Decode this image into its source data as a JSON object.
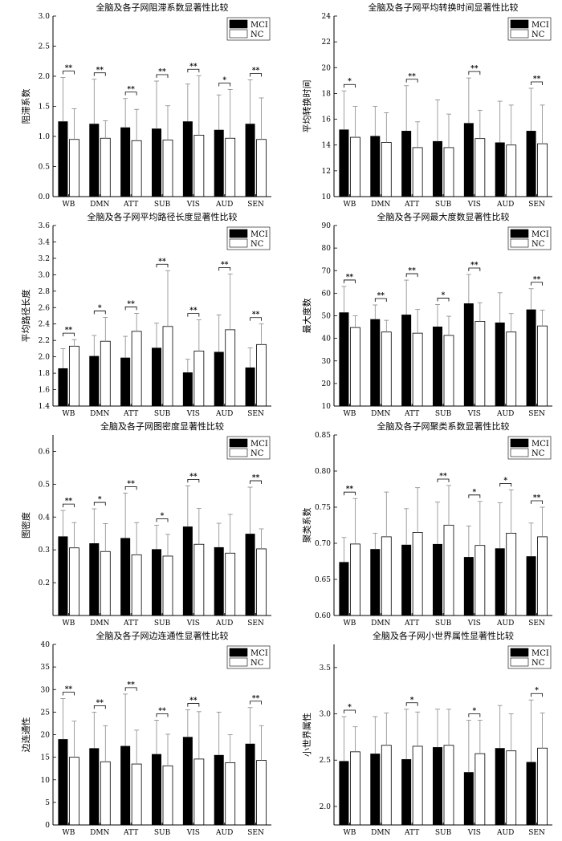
{
  "legend": {
    "mci": "MCI",
    "nc": "NC"
  },
  "colors": {
    "mci": "#000000",
    "nc": "#ffffff",
    "stroke": "#000000",
    "error": "#888888"
  },
  "chart_data": [
    {
      "type": "bar",
      "title": "全脑及各子网阻滞系数显著性比较",
      "ylabel": "阻滞系数",
      "xlabel": "",
      "ylim": [
        0,
        3.0
      ],
      "yticks": [
        "0.0",
        "0.5",
        "1.0",
        "1.5",
        "2.0",
        "2.5",
        "3.0"
      ],
      "categories": [
        "WB",
        "DMN",
        "ATT",
        "SUB",
        "VIS",
        "AUD",
        "SEN"
      ],
      "legend_position": "top-right",
      "series": [
        {
          "name": "MCI",
          "values": [
            1.25,
            1.21,
            1.15,
            1.13,
            1.25,
            1.11,
            1.21
          ],
          "errors": [
            0.73,
            0.74,
            0.48,
            0.79,
            0.62,
            0.58,
            0.73
          ]
        },
        {
          "name": "NC",
          "values": [
            0.95,
            0.97,
            0.93,
            0.94,
            1.02,
            0.97,
            0.95
          ],
          "errors": [
            0.51,
            0.29,
            0.52,
            0.57,
            0.99,
            0.81,
            0.69
          ]
        }
      ],
      "significance": [
        "**",
        "**",
        "**",
        "**",
        "**",
        "*",
        "**"
      ]
    },
    {
      "type": "bar",
      "title": "全脑及各子网平均转换时间显著性比较",
      "ylabel": "平均转换时间",
      "xlabel": "",
      "ylim": [
        10,
        24
      ],
      "yticks": [
        "10",
        "12",
        "14",
        "16",
        "18",
        "20",
        "22",
        "24"
      ],
      "categories": [
        "WB",
        "DMN",
        "ATT",
        "SUB",
        "VIS",
        "AUD",
        "SEN"
      ],
      "legend_position": "top-right",
      "series": [
        {
          "name": "MCI",
          "values": [
            15.2,
            14.7,
            15.1,
            14.3,
            15.7,
            14.2,
            15.1
          ],
          "errors": [
            3.0,
            2.3,
            3.5,
            3.2,
            3.5,
            3.2,
            3.3
          ]
        },
        {
          "name": "NC",
          "values": [
            14.6,
            14.2,
            13.8,
            13.8,
            14.5,
            14.0,
            14.1
          ],
          "errors": [
            2.4,
            2.3,
            2.0,
            2.6,
            2.2,
            3.1,
            3.0
          ]
        }
      ],
      "significance": [
        "*",
        "",
        "**",
        "",
        "**",
        "",
        "**"
      ]
    },
    {
      "type": "bar",
      "title": "全脑及各子网平均路径长度显著性比较",
      "ylabel": "平均路径长度",
      "xlabel": "",
      "ylim": [
        1.4,
        3.6
      ],
      "yticks": [
        "1.4",
        "1.6",
        "1.8",
        "2.0",
        "2.2",
        "2.4",
        "2.6",
        "2.8",
        "3.0",
        "3.2",
        "3.4",
        "3.6"
      ],
      "categories": [
        "WB",
        "DMN",
        "ATT",
        "SUB",
        "VIS",
        "AUD",
        "SEN"
      ],
      "legend_position": "top-right",
      "series": [
        {
          "name": "MCI",
          "values": [
            1.86,
            2.01,
            1.99,
            2.11,
            1.81,
            2.06,
            1.87
          ],
          "errors": [
            0.24,
            0.25,
            0.26,
            0.3,
            0.16,
            0.45,
            0.24
          ]
        },
        {
          "name": "NC",
          "values": [
            2.13,
            2.19,
            2.31,
            2.37,
            2.07,
            2.33,
            2.15
          ],
          "errors": [
            0.08,
            0.29,
            0.22,
            0.68,
            0.38,
            0.68,
            0.25
          ]
        }
      ],
      "significance": [
        "**",
        "*",
        "**",
        "**",
        "**",
        "**",
        "**"
      ]
    },
    {
      "type": "bar",
      "title": "全脑及各子网最大度数显著性比较",
      "ylabel": "最大度数",
      "xlabel": "",
      "ylim": [
        10,
        90
      ],
      "yticks": [
        "10",
        "20",
        "30",
        "40",
        "50",
        "60",
        "70",
        "80",
        "90"
      ],
      "categories": [
        "WB",
        "DMN",
        "ATT",
        "SUB",
        "VIS",
        "AUD",
        "SEN"
      ],
      "legend_position": "top-right",
      "series": [
        {
          "name": "MCI",
          "values": [
            51.5,
            48.5,
            50.5,
            45.2,
            55.5,
            47.0,
            52.8
          ],
          "errors": [
            11.5,
            6.3,
            15.3,
            9.8,
            12.8,
            13.2,
            9.2
          ]
        },
        {
          "name": "NC",
          "values": [
            44.8,
            42.8,
            42.3,
            41.3,
            47.5,
            42.8,
            45.5
          ],
          "errors": [
            5.2,
            5.2,
            10.5,
            8.5,
            8.3,
            8.2,
            7.0
          ]
        }
      ],
      "significance": [
        "**",
        "**",
        "**",
        "*",
        "**",
        "",
        "**"
      ]
    },
    {
      "type": "bar",
      "title": "全脑及各子网图密度显著性比较",
      "ylabel": "图密度",
      "xlabel": "",
      "ylim": [
        0.1,
        0.65
      ],
      "yticks": [
        "0.2",
        "0.3",
        "0.4",
        "0.5",
        "0.6"
      ],
      "categories": [
        "WB",
        "DMN",
        "ATT",
        "SUB",
        "VIS",
        "AUD",
        "SEN"
      ],
      "legend_position": "top-right",
      "series": [
        {
          "name": "MCI",
          "values": [
            0.341,
            0.32,
            0.336,
            0.302,
            0.371,
            0.308,
            0.349
          ],
          "errors": [
            0.079,
            0.105,
            0.137,
            0.073,
            0.124,
            0.073,
            0.142
          ]
        },
        {
          "name": "NC",
          "values": [
            0.306,
            0.295,
            0.285,
            0.281,
            0.317,
            0.29,
            0.303
          ],
          "errors": [
            0.077,
            0.085,
            0.098,
            0.066,
            0.109,
            0.118,
            0.061
          ]
        }
      ],
      "significance": [
        "**",
        "*",
        "**",
        "*",
        "**",
        "",
        "**"
      ]
    },
    {
      "type": "bar",
      "title": "全脑及各子网聚类系数显著性比较",
      "ylabel": "聚类系数",
      "xlabel": "",
      "ylim": [
        0.6,
        0.85
      ],
      "yticks": [
        "0.60",
        "0.65",
        "0.70",
        "0.75",
        "0.80",
        "0.85"
      ],
      "categories": [
        "WB",
        "DMN",
        "ATT",
        "SUB",
        "VIS",
        "AUD",
        "SEN"
      ],
      "legend_position": "top-right",
      "series": [
        {
          "name": "MCI",
          "values": [
            0.674,
            0.692,
            0.698,
            0.699,
            0.681,
            0.693,
            0.682
          ],
          "errors": [
            0.034,
            0.022,
            0.05,
            0.058,
            0.043,
            0.063,
            0.046
          ]
        },
        {
          "name": "NC",
          "values": [
            0.699,
            0.709,
            0.715,
            0.725,
            0.697,
            0.714,
            0.709
          ],
          "errors": [
            0.063,
            0.062,
            0.062,
            0.055,
            0.061,
            0.06,
            0.041
          ]
        }
      ],
      "significance": [
        "**",
        "",
        "",
        "**",
        "*",
        "*",
        "**"
      ]
    },
    {
      "type": "bar",
      "title": "全脑及各子网边连通性显著性比较",
      "ylabel": "边连通性",
      "xlabel": "",
      "ylim": [
        0,
        40
      ],
      "yticks": [
        "0",
        "5",
        "10",
        "15",
        "20",
        "25",
        "30",
        "35",
        "40"
      ],
      "categories": [
        "WB",
        "DMN",
        "ATT",
        "SUB",
        "VIS",
        "AUD",
        "SEN"
      ],
      "legend_position": "top-right",
      "series": [
        {
          "name": "MCI",
          "values": [
            19.0,
            17.0,
            17.5,
            15.7,
            19.5,
            15.5,
            18.0
          ],
          "errors": [
            9.0,
            8.0,
            11.5,
            7.5,
            6.0,
            9.5,
            8.0
          ]
        },
        {
          "name": "NC",
          "values": [
            15.0,
            14.0,
            13.5,
            13.1,
            14.6,
            13.8,
            14.3
          ],
          "errors": [
            8.0,
            8.0,
            7.5,
            7.0,
            10.5,
            6.2,
            7.7
          ]
        }
      ],
      "significance": [
        "**",
        "**",
        "**",
        "**",
        "**",
        "",
        "**"
      ]
    },
    {
      "type": "bar",
      "title": "全脑及各子网小世界属性显著性比较",
      "ylabel": "小世界属性",
      "xlabel": "",
      "ylim": [
        1.8,
        3.75
      ],
      "yticks": [
        "2.0",
        "2.5",
        "3.0",
        "3.5"
      ],
      "categories": [
        "WB",
        "DMN",
        "ATT",
        "SUB",
        "VIS",
        "AUD",
        "SEN"
      ],
      "legend_position": "top-right",
      "series": [
        {
          "name": "MCI",
          "values": [
            2.49,
            2.57,
            2.51,
            2.64,
            2.37,
            2.63,
            2.48
          ],
          "errors": [
            0.48,
            0.4,
            0.54,
            0.41,
            0.56,
            0.46,
            0.67
          ]
        },
        {
          "name": "NC",
          "values": [
            2.59,
            2.66,
            2.65,
            2.66,
            2.57,
            2.6,
            2.63
          ],
          "errors": [
            0.27,
            0.35,
            0.37,
            0.39,
            0.36,
            0.4,
            0.38
          ]
        }
      ],
      "significance": [
        "*",
        "",
        "*",
        "",
        "*",
        "",
        "*"
      ]
    }
  ]
}
